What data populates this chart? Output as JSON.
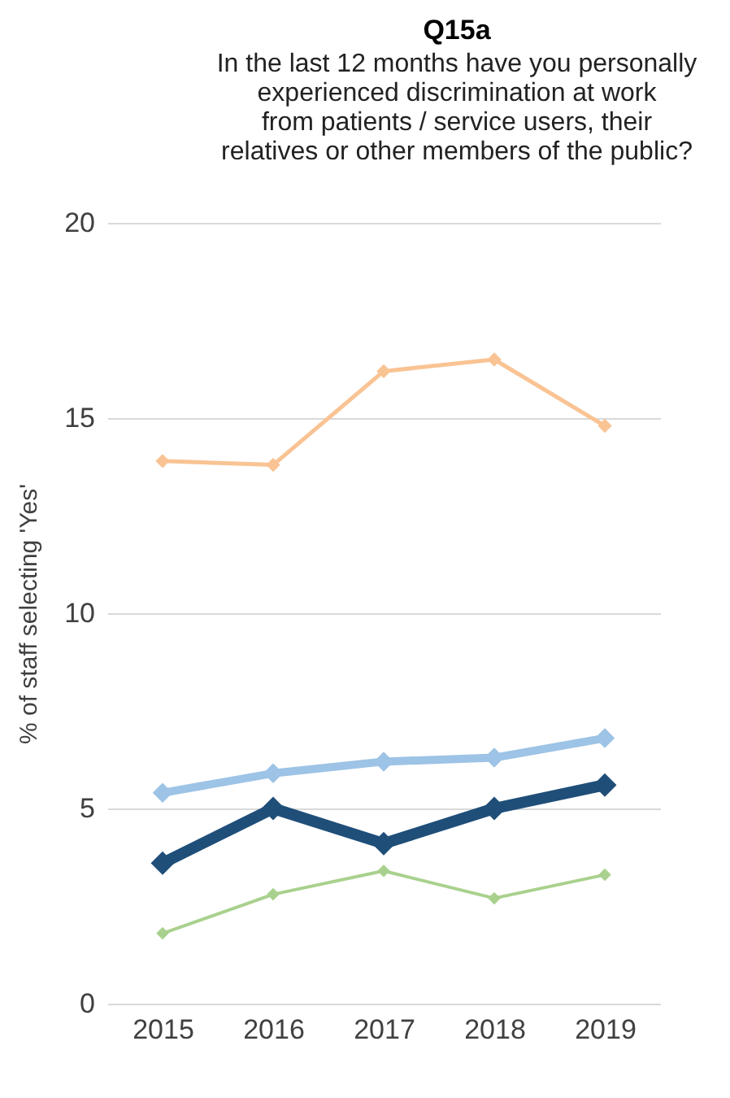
{
  "chart_data": {
    "type": "line",
    "title": "Q15a",
    "subtitle": [
      "In the last 12 months have you personally",
      "experienced discrimination at work",
      "from patients / service users, their",
      "relatives or other members of the public?"
    ],
    "ylabel": "% of staff selecting 'Yes'",
    "categories": [
      "2015",
      "2016",
      "2017",
      "2018",
      "2019"
    ],
    "series": [
      {
        "color": "#f9c393",
        "values": [
          13.9,
          13.8,
          16.2,
          16.5,
          14.8
        ]
      },
      {
        "color": "#9dc3e6",
        "values": [
          5.4,
          5.9,
          6.2,
          6.3,
          6.8
        ]
      },
      {
        "color": "#1f4e79",
        "values": [
          3.6,
          5.0,
          4.1,
          5.0,
          5.6
        ]
      },
      {
        "color": "#a9d18e",
        "values": [
          1.8,
          2.8,
          3.4,
          2.7,
          3.3
        ]
      }
    ],
    "ylim": [
      0,
      20
    ],
    "yticks": [
      0,
      5,
      10,
      15,
      20
    ],
    "grid": "y",
    "legend": false,
    "marker": "diamond",
    "line_style": "solid"
  }
}
